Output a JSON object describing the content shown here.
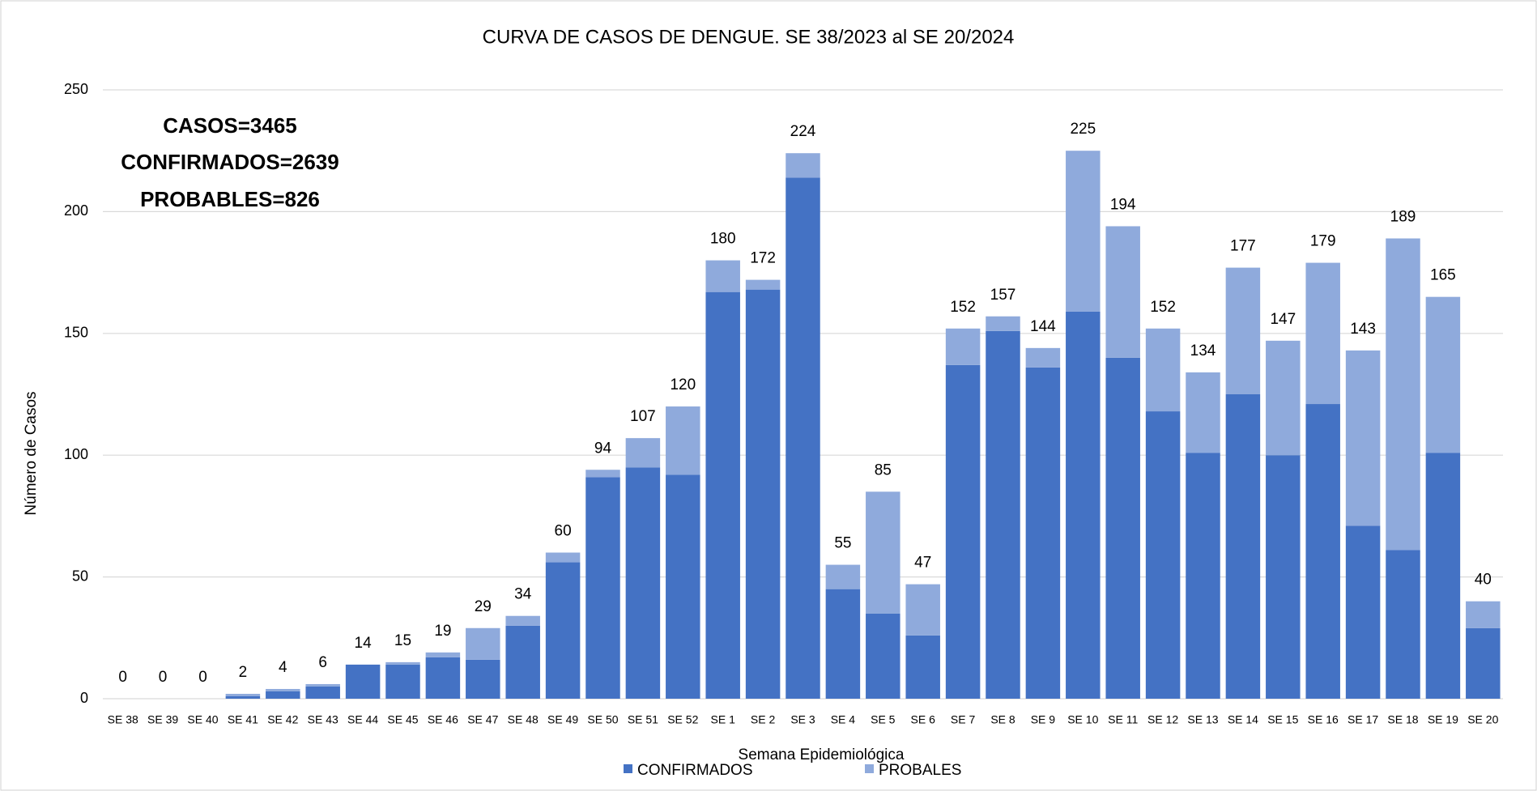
{
  "chart_data": {
    "type": "stacked_bar",
    "title": "CURVA DE CASOS DE DENGUE. SE 38/2023 al SE 20/2024",
    "annotations": [
      "CASOS=3465",
      "CONFIRMADOS=2639",
      "PROBABLES=826"
    ],
    "x_label": "Semana Epidemiológica",
    "y_label": "Número de Casos",
    "categories": [
      "SE 38",
      "SE 39",
      "SE 40",
      "SE 41",
      "SE 42",
      "SE 43",
      "SE 44",
      "SE 45",
      "SE 46",
      "SE 47",
      "SE 48",
      "SE 49",
      "SE 50",
      "SE 51",
      "SE 52",
      "SE 1",
      "SE 2",
      "SE 3",
      "SE 4",
      "SE 5",
      "SE 6",
      "SE 7",
      "SE 8",
      "SE 9",
      "SE 10",
      "SE 11",
      "SE 12",
      "SE 13",
      "SE 14",
      "SE 15",
      "SE 16",
      "SE 17",
      "SE 18",
      "SE 19",
      "SE 20"
    ],
    "series": [
      {
        "name": "CONFIRMADOS",
        "color": "#4472c4",
        "values": [
          0,
          0,
          0,
          1,
          3,
          5,
          14,
          14,
          17,
          16,
          30,
          56,
          91,
          95,
          92,
          167,
          168,
          214,
          45,
          35,
          26,
          137,
          151,
          136,
          159,
          140,
          118,
          101,
          125,
          100,
          121,
          71,
          61,
          101,
          29
        ]
      },
      {
        "name": "PROBALES",
        "color": "#8faadc",
        "values": [
          0,
          0,
          0,
          1,
          1,
          1,
          0,
          1,
          2,
          13,
          4,
          4,
          3,
          12,
          28,
          13,
          4,
          10,
          10,
          50,
          21,
          15,
          6,
          8,
          66,
          54,
          34,
          33,
          52,
          47,
          58,
          72,
          128,
          64,
          11
        ]
      }
    ],
    "totals": [
      0,
      0,
      0,
      2,
      4,
      6,
      14,
      15,
      19,
      29,
      34,
      60,
      94,
      107,
      120,
      180,
      172,
      224,
      55,
      85,
      47,
      152,
      157,
      144,
      225,
      194,
      152,
      134,
      177,
      147,
      179,
      143,
      189,
      165,
      40
    ],
    "ylim": [
      0,
      250
    ],
    "yticks": [
      0,
      50,
      100,
      150,
      200,
      250
    ],
    "grid": true,
    "legend": "bottom"
  }
}
